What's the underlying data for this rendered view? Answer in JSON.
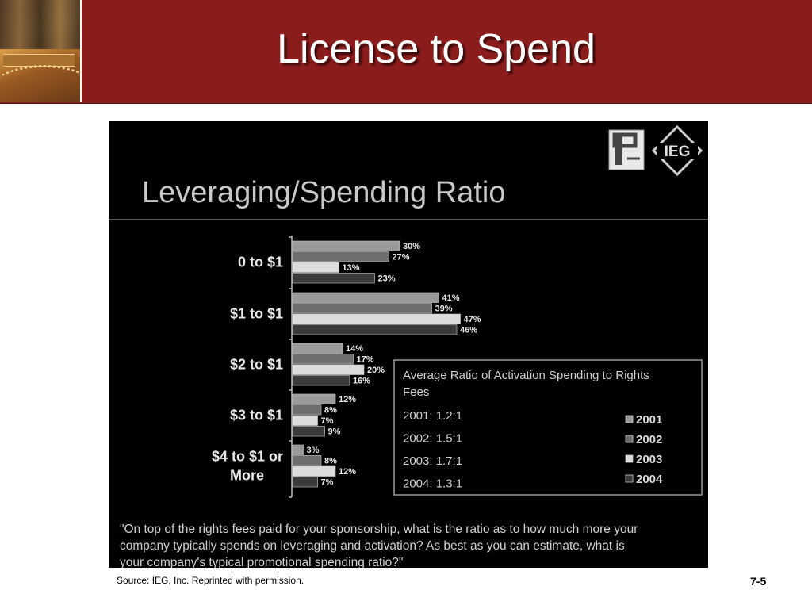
{
  "slide_title": "License to Spend",
  "source_note": "Source: IEG, Inc. Reprinted with permission.",
  "page_number": "7-5",
  "logos": [
    "PF-logo",
    "IEG-logo"
  ],
  "colors": {
    "header": "#8a1c1c",
    "bar_2001": "#9a9a9a",
    "bar_2002": "#6e6e6e",
    "bar_2003": "#dcdcdc",
    "bar_2004": "#3a3a3a"
  },
  "chart_data": {
    "type": "bar",
    "orientation": "horizontal",
    "title": "Leveraging/Spending Ratio",
    "categories": [
      "0 to $1",
      "$1 to $1",
      "$2 to $1",
      "$3 to $1",
      "$4 to $1 or More"
    ],
    "series": [
      {
        "name": "2001",
        "values": [
          30,
          41,
          14,
          12,
          3
        ]
      },
      {
        "name": "2002",
        "values": [
          27,
          39,
          17,
          8,
          8
        ]
      },
      {
        "name": "2003",
        "values": [
          13,
          47,
          20,
          7,
          12
        ]
      },
      {
        "name": "2004",
        "values": [
          23,
          46,
          16,
          9,
          7
        ]
      }
    ],
    "value_suffix": "%",
    "xlim": [
      0,
      50
    ],
    "grid": false,
    "legend_placement": "bottom-right inside box",
    "annotation_box": {
      "heading": "Average Ratio of Activation Spending to Rights Fees",
      "lines": [
        "2001: 1.2:1",
        "2002: 1.5:1",
        "2003: 1.7:1",
        "2004: 1.3:1"
      ]
    },
    "question": "\"On top of the rights fees paid for your sponsorship, what is the ratio as to how much more your company typically spends on leveraging and activation?  As best as you can estimate, what is your company's typical promotional spending ratio?\""
  }
}
